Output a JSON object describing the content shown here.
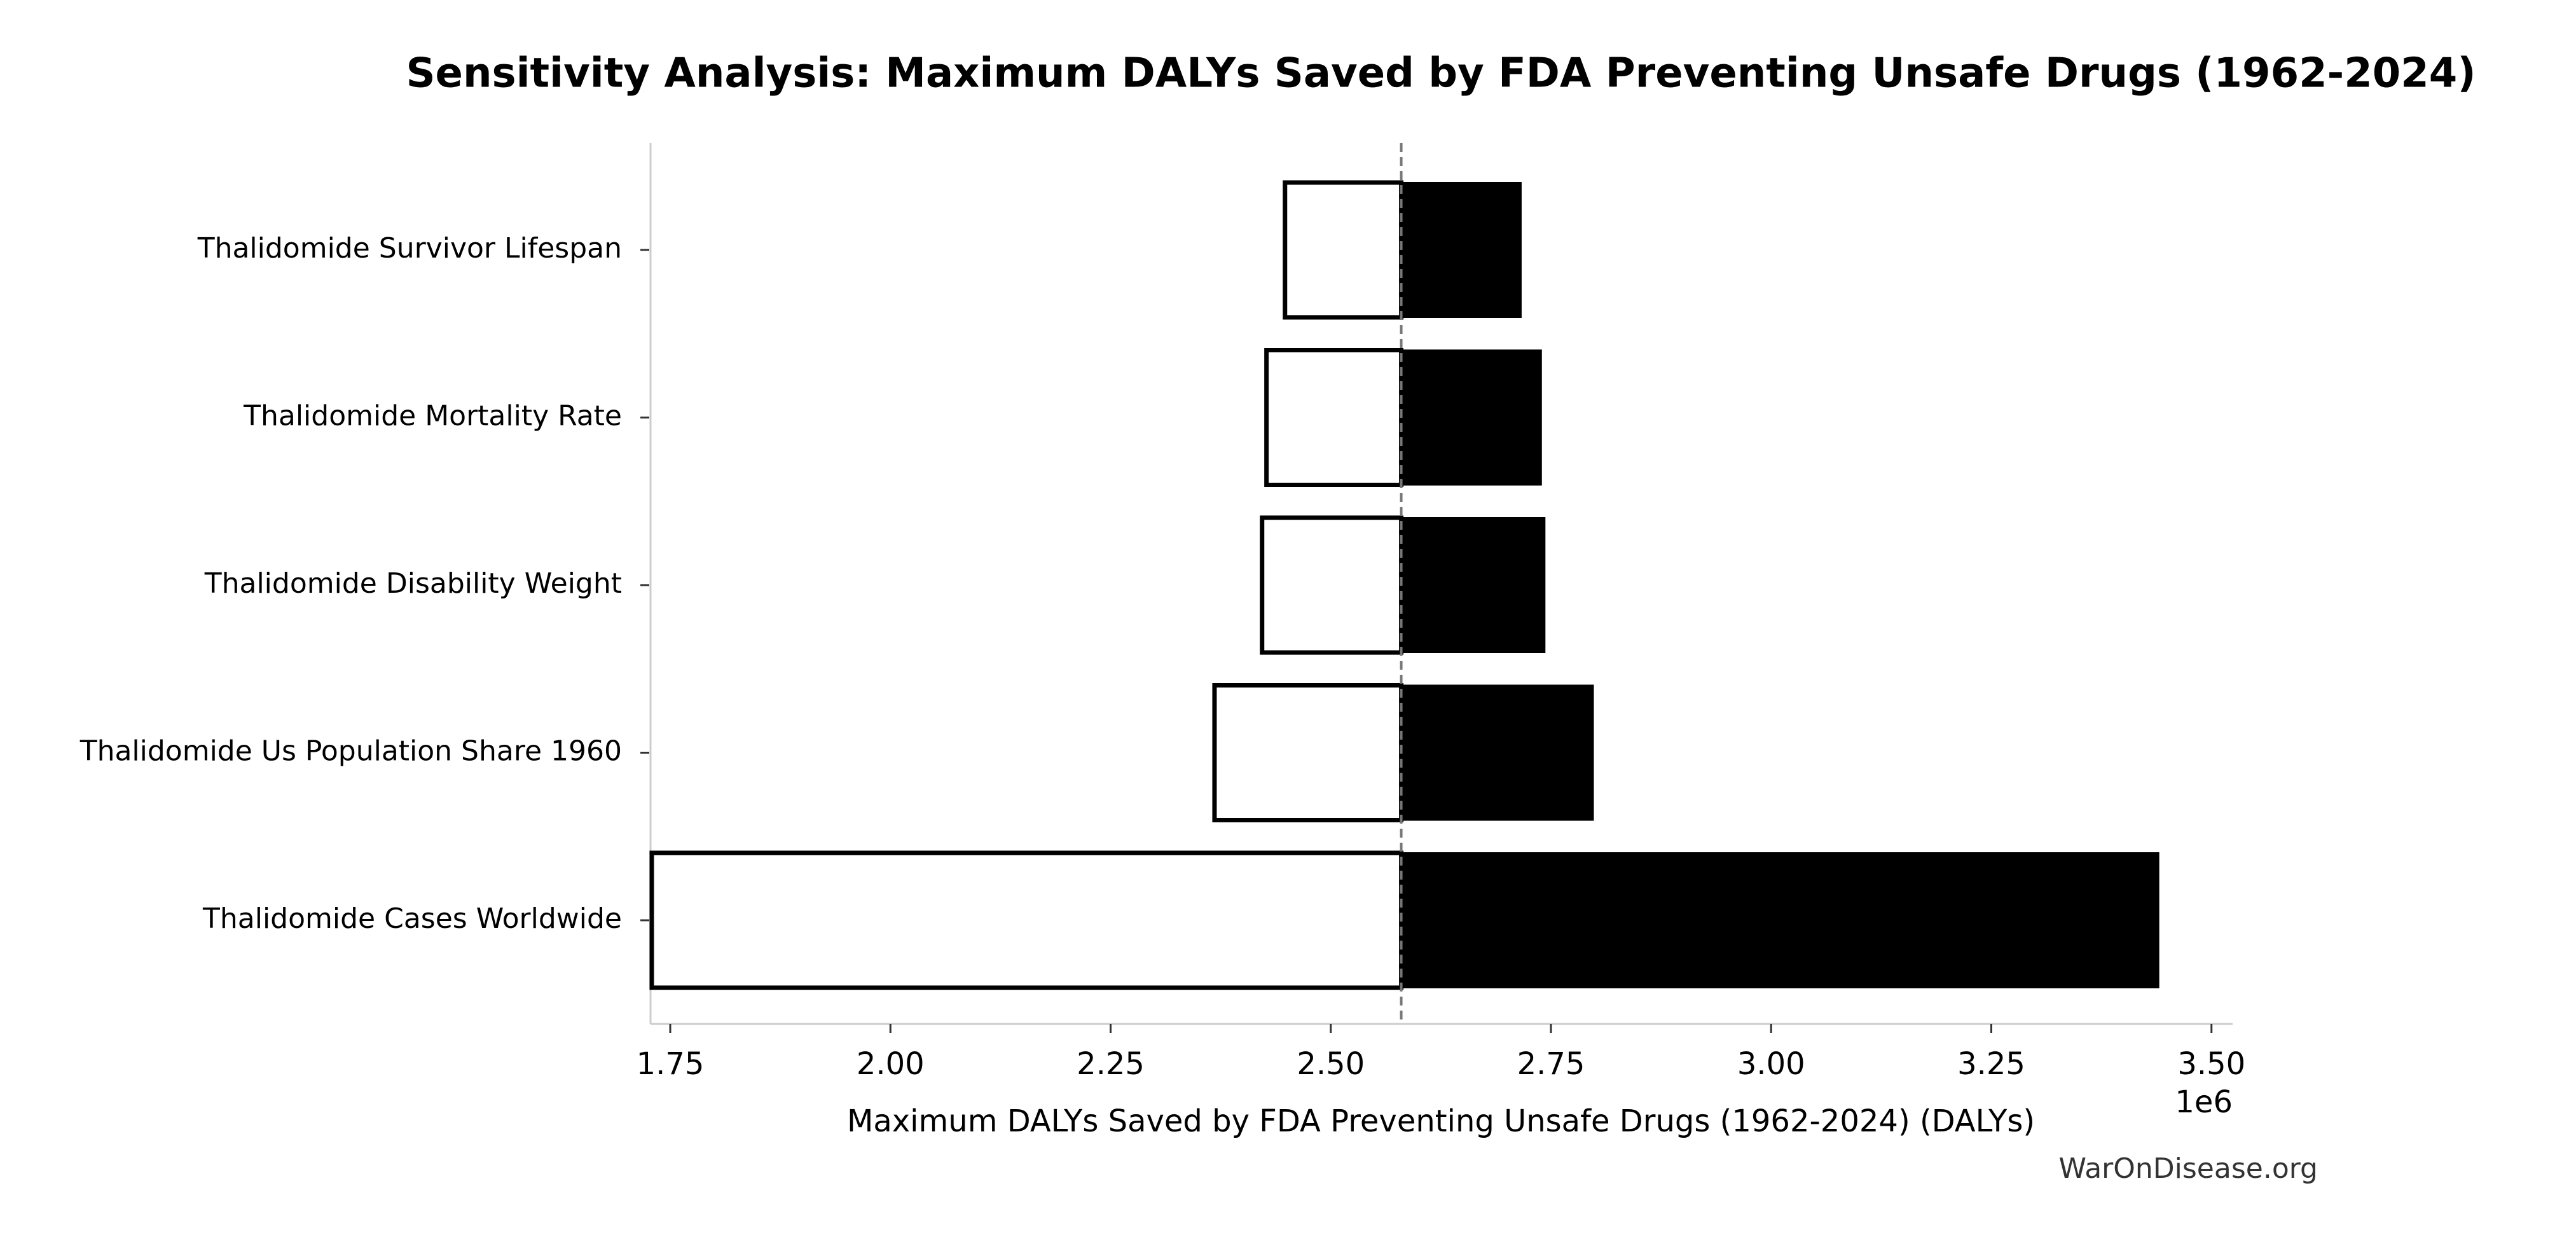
{
  "chart_data": {
    "type": "tornado",
    "title": "Sensitivity Analysis: Maximum DALYs Saved by FDA Preventing Unsafe Drugs (1962-2024)",
    "xlabel": "Maximum DALYs Saved by FDA Preventing Unsafe Drugs (1962-2024) (DALYs)",
    "offset_label": "1e6",
    "watermark": "WarOnDisease.org",
    "categories": [
      "Thalidomide Survivor Lifespan",
      "Thalidomide Mortality Rate",
      "Thalidomide Disability Weight",
      "Thalidomide Us Population Share 1960",
      "Thalidomide Cases Worldwide"
    ],
    "low": [
      2448000,
      2427000,
      2422000,
      2368000,
      1729000
    ],
    "high": [
      2716000,
      2739000,
      2743000,
      2798000,
      3440000
    ],
    "baseline": 2580000,
    "low_color": "#ffffff",
    "high_color": "#000000",
    "xlim": [
      1727600,
      3524000
    ],
    "xticks": [
      {
        "value": 1750000,
        "label": "1.75"
      },
      {
        "value": 2000000,
        "label": "2.00"
      },
      {
        "value": 2250000,
        "label": "2.25"
      },
      {
        "value": 2500000,
        "label": "2.50"
      },
      {
        "value": 2750000,
        "label": "2.75"
      },
      {
        "value": 3000000,
        "label": "3.00"
      },
      {
        "value": 3250000,
        "label": "3.25"
      },
      {
        "value": 3500000,
        "label": "3.50"
      }
    ]
  }
}
